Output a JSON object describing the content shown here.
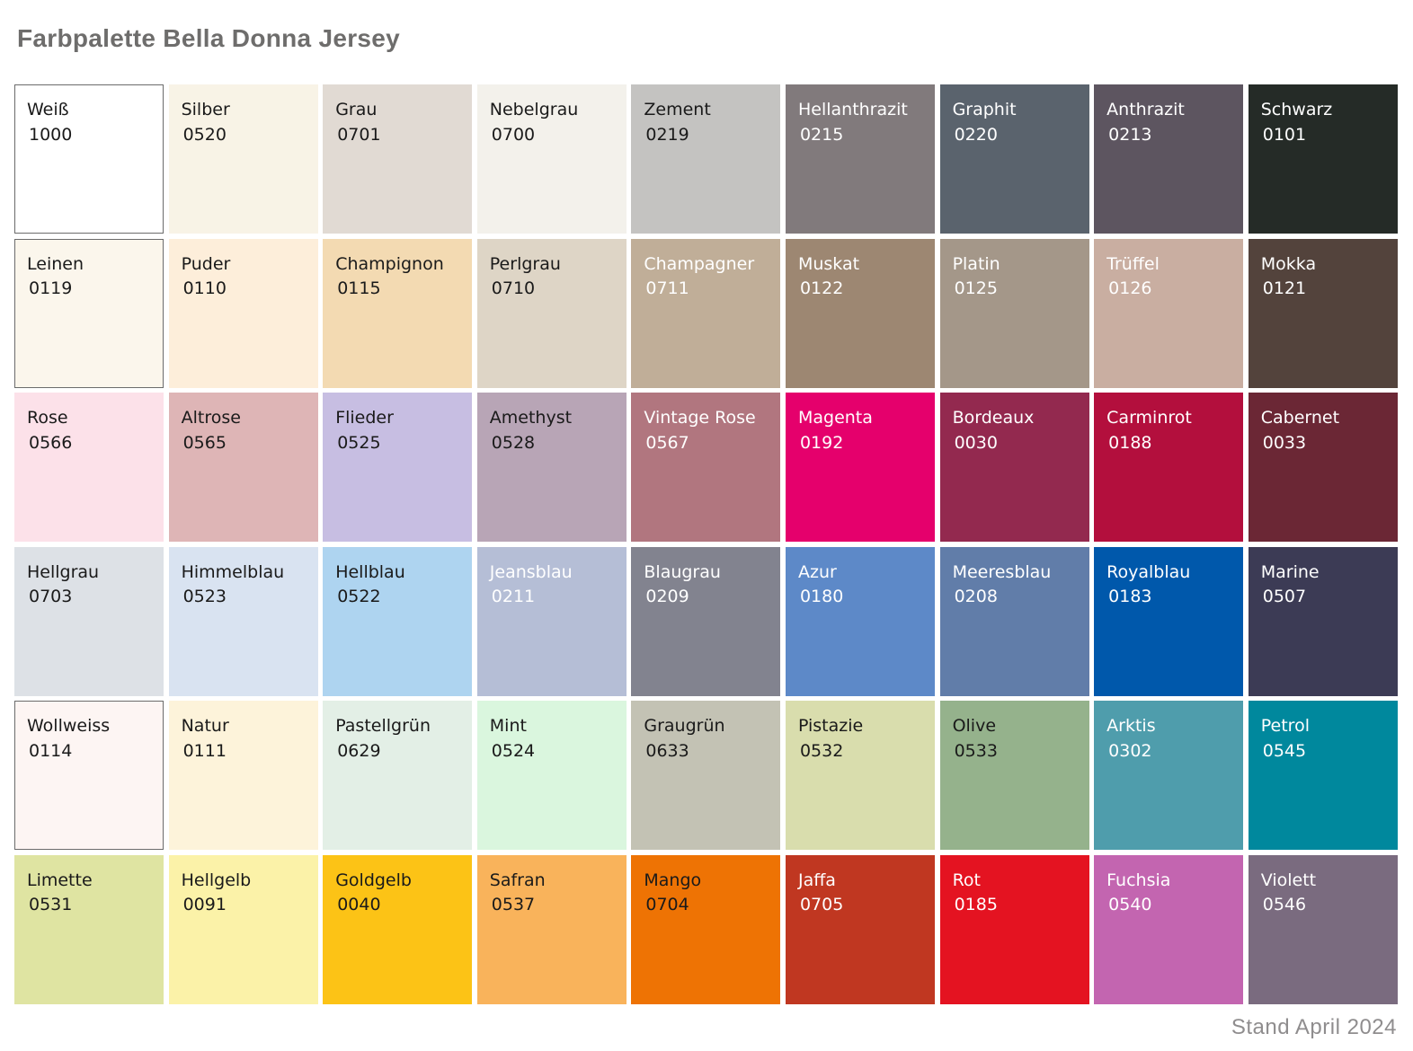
{
  "title": "Farbpalette Bella Donna Jersey",
  "footer": "Stand April 2024",
  "palette": {
    "rows": 6,
    "cols": 9,
    "dark_text": "#1a1a1a",
    "light_text": "#ffffff",
    "border_color": "#6b6b6b",
    "swatches": [
      {
        "name": "Weiß",
        "code": "1000",
        "bg": "#ffffff",
        "fg": "dark",
        "border": true
      },
      {
        "name": "Silber",
        "code": "0520",
        "bg": "#f8f3e6",
        "fg": "dark",
        "border": false
      },
      {
        "name": "Grau",
        "code": "0701",
        "bg": "#e1dad3",
        "fg": "dark",
        "border": false
      },
      {
        "name": "Nebelgrau",
        "code": "0700",
        "bg": "#f3f1eb",
        "fg": "dark",
        "border": false
      },
      {
        "name": "Zement",
        "code": "0219",
        "bg": "#c4c3c1",
        "fg": "dark",
        "border": false
      },
      {
        "name": "Hellanthrazit",
        "code": "0215",
        "bg": "#817a7c",
        "fg": "light",
        "border": false
      },
      {
        "name": "Graphit",
        "code": "0220",
        "bg": "#5a636d",
        "fg": "light",
        "border": false
      },
      {
        "name": "Anthrazit",
        "code": "0213",
        "bg": "#5d5560",
        "fg": "light",
        "border": false
      },
      {
        "name": "Schwarz",
        "code": "0101",
        "bg": "#252b27",
        "fg": "light",
        "border": false
      },
      {
        "name": "Leinen",
        "code": "0119",
        "bg": "#fbf6ec",
        "fg": "dark",
        "border": true
      },
      {
        "name": "Puder",
        "code": "0110",
        "bg": "#fdeeda",
        "fg": "dark",
        "border": false
      },
      {
        "name": "Champignon",
        "code": "0115",
        "bg": "#f3dab2",
        "fg": "dark",
        "border": false
      },
      {
        "name": "Perlgrau",
        "code": "0710",
        "bg": "#ded5c6",
        "fg": "dark",
        "border": false
      },
      {
        "name": "Champagner",
        "code": "0711",
        "bg": "#c0ae98",
        "fg": "light",
        "border": false
      },
      {
        "name": "Muskat",
        "code": "0122",
        "bg": "#9d8772",
        "fg": "light",
        "border": false
      },
      {
        "name": "Platin",
        "code": "0125",
        "bg": "#a49789",
        "fg": "light",
        "border": false
      },
      {
        "name": "Trüffel",
        "code": "0126",
        "bg": "#c9aea1",
        "fg": "light",
        "border": false
      },
      {
        "name": "Mokka",
        "code": "0121",
        "bg": "#53433c",
        "fg": "light",
        "border": false
      },
      {
        "name": "Rose",
        "code": "0566",
        "bg": "#fce1e9",
        "fg": "dark",
        "border": false
      },
      {
        "name": "Altrose",
        "code": "0565",
        "bg": "#deb5b6",
        "fg": "dark",
        "border": false
      },
      {
        "name": "Flieder",
        "code": "0525",
        "bg": "#c7bee2",
        "fg": "dark",
        "border": false
      },
      {
        "name": "Amethyst",
        "code": "0528",
        "bg": "#b8a5b6",
        "fg": "dark",
        "border": false
      },
      {
        "name": "Vintage Rose",
        "code": "0567",
        "bg": "#b1767f",
        "fg": "light",
        "border": false
      },
      {
        "name": "Magenta",
        "code": "0192",
        "bg": "#e5006c",
        "fg": "light",
        "border": false
      },
      {
        "name": "Bordeaux",
        "code": "0030",
        "bg": "#93294f",
        "fg": "light",
        "border": false
      },
      {
        "name": "Carminrot",
        "code": "0188",
        "bg": "#b30f3d",
        "fg": "light",
        "border": false
      },
      {
        "name": "Cabernet",
        "code": "0033",
        "bg": "#6b2735",
        "fg": "light",
        "border": false
      },
      {
        "name": "Hellgrau",
        "code": "0703",
        "bg": "#dde1e6",
        "fg": "dark",
        "border": false
      },
      {
        "name": "Himmelblau",
        "code": "0523",
        "bg": "#d9e3f1",
        "fg": "dark",
        "border": false
      },
      {
        "name": "Hellblau",
        "code": "0522",
        "bg": "#aed4f0",
        "fg": "dark",
        "border": false
      },
      {
        "name": "Jeansblau",
        "code": "0211",
        "bg": "#b5bed6",
        "fg": "light",
        "border": false
      },
      {
        "name": "Blaugrau",
        "code": "0209",
        "bg": "#82838f",
        "fg": "light",
        "border": false
      },
      {
        "name": "Azur",
        "code": "0180",
        "bg": "#5d89c8",
        "fg": "light",
        "border": false
      },
      {
        "name": "Meeresblau",
        "code": "0208",
        "bg": "#617da9",
        "fg": "light",
        "border": false
      },
      {
        "name": "Royalblau",
        "code": "0183",
        "bg": "#0058ab",
        "fg": "light",
        "border": false
      },
      {
        "name": "Marine",
        "code": "0507",
        "bg": "#3c3b55",
        "fg": "light",
        "border": false
      },
      {
        "name": "Wollweiss",
        "code": "0114",
        "bg": "#fdf5f3",
        "fg": "dark",
        "border": true
      },
      {
        "name": "Natur",
        "code": "0111",
        "bg": "#fdf3da",
        "fg": "dark",
        "border": false
      },
      {
        "name": "Pastellgrün",
        "code": "0629",
        "bg": "#e3efe6",
        "fg": "dark",
        "border": false
      },
      {
        "name": "Mint",
        "code": "0524",
        "bg": "#daf6de",
        "fg": "dark",
        "border": false
      },
      {
        "name": "Graugrün",
        "code": "0633",
        "bg": "#c3c2b4",
        "fg": "dark",
        "border": false
      },
      {
        "name": "Pistazie",
        "code": "0532",
        "bg": "#d9ddad",
        "fg": "dark",
        "border": false
      },
      {
        "name": "Olive",
        "code": "0533",
        "bg": "#95b28c",
        "fg": "dark",
        "border": false
      },
      {
        "name": "Arktis",
        "code": "0302",
        "bg": "#4f9dac",
        "fg": "light",
        "border": false
      },
      {
        "name": "Petrol",
        "code": "0545",
        "bg": "#00889d",
        "fg": "light",
        "border": false
      },
      {
        "name": "Limette",
        "code": "0531",
        "bg": "#dfe4a2",
        "fg": "dark",
        "border": false
      },
      {
        "name": "Hellgelb",
        "code": "0091",
        "bg": "#fbf2a8",
        "fg": "dark",
        "border": false
      },
      {
        "name": "Goldgelb",
        "code": "0040",
        "bg": "#fcc316",
        "fg": "dark",
        "border": false
      },
      {
        "name": "Safran",
        "code": "0537",
        "bg": "#f9b35b",
        "fg": "dark",
        "border": false
      },
      {
        "name": "Mango",
        "code": "0704",
        "bg": "#ee7304",
        "fg": "dark",
        "border": false
      },
      {
        "name": "Jaffa",
        "code": "0705",
        "bg": "#c03721",
        "fg": "light",
        "border": false
      },
      {
        "name": "Rot",
        "code": "0185",
        "bg": "#e41321",
        "fg": "light",
        "border": false
      },
      {
        "name": "Fuchsia",
        "code": "0540",
        "bg": "#c365b0",
        "fg": "light",
        "border": false
      },
      {
        "name": "Violett",
        "code": "0546",
        "bg": "#7a6b7f",
        "fg": "light",
        "border": false
      }
    ]
  }
}
